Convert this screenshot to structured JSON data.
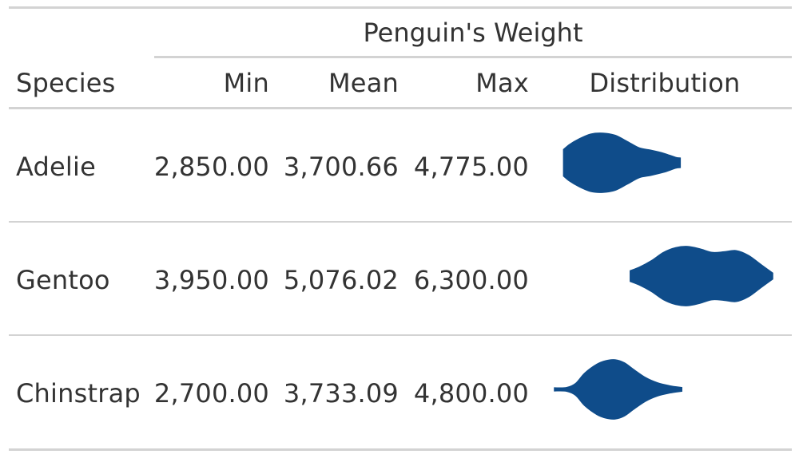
{
  "table": {
    "spanner": "Penguin's Weight",
    "columns": {
      "species": "Species",
      "min": "Min",
      "mean": "Mean",
      "max": "Max",
      "distribution": "Distribution"
    },
    "rows": [
      {
        "species": "Adelie",
        "min": "2,850.00",
        "mean": "3,700.66",
        "max": "4,775.00"
      },
      {
        "species": "Gentoo",
        "min": "3,950.00",
        "mean": "5,076.02",
        "max": "6,300.00"
      },
      {
        "species": "Chinstrap",
        "min": "2,700.00",
        "mean": "3,733.09",
        "max": "4,800.00"
      }
    ]
  },
  "chart_data": {
    "type": "violin",
    "value_range": [
      2700,
      6300
    ],
    "color": "#0F4C8A",
    "series": [
      {
        "name": "Adelie",
        "min": 2850,
        "max": 4775,
        "density_x": [
          2850,
          2950,
          3100,
          3300,
          3500,
          3700,
          3900,
          4100,
          4300,
          4500,
          4700,
          4775
        ],
        "density_y": [
          0.45,
          0.62,
          0.8,
          0.97,
          1.0,
          0.93,
          0.72,
          0.5,
          0.42,
          0.32,
          0.18,
          0.16
        ]
      },
      {
        "name": "Gentoo",
        "min": 3950,
        "max": 6300,
        "density_x": [
          3950,
          4100,
          4300,
          4500,
          4700,
          4900,
          5100,
          5300,
          5500,
          5700,
          5900,
          6100,
          6300
        ],
        "density_y": [
          0.18,
          0.3,
          0.52,
          0.8,
          0.96,
          1.0,
          0.92,
          0.8,
          0.82,
          0.86,
          0.7,
          0.4,
          0.1
        ]
      },
      {
        "name": "Chinstrap",
        "min": 2700,
        "max": 4800,
        "density_x": [
          2700,
          2900,
          3050,
          3200,
          3400,
          3550,
          3700,
          3850,
          4000,
          4200,
          4400,
          4600,
          4800
        ],
        "density_y": [
          0.05,
          0.06,
          0.2,
          0.55,
          0.85,
          0.97,
          1.0,
          0.9,
          0.68,
          0.4,
          0.22,
          0.12,
          0.06
        ]
      }
    ]
  }
}
